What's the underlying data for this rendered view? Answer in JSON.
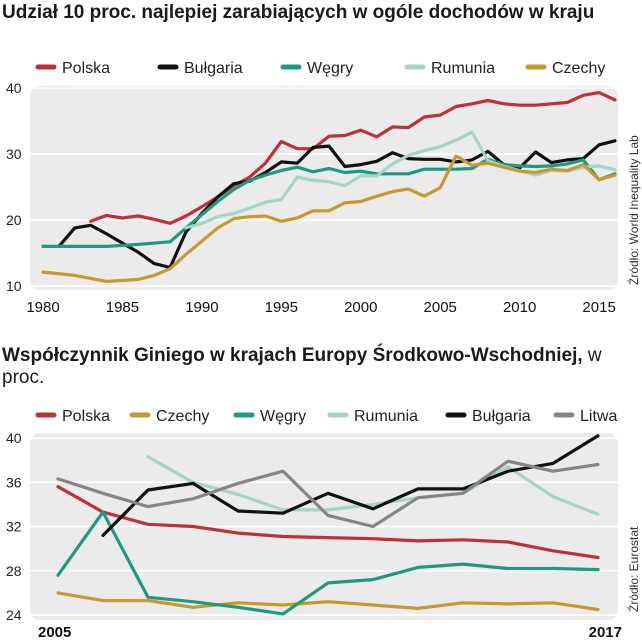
{
  "chart_data": [
    {
      "type": "line",
      "title": "Udział 10 proc. najlepiej zarabiających w ogóle dochodów w kraju",
      "source": "Źródło: World Inequality Lab",
      "xlim": [
        1980,
        2016
      ],
      "ylim": [
        10,
        40
      ],
      "x_ticks": [
        1980,
        1985,
        1990,
        1995,
        2000,
        2005,
        2010,
        2015
      ],
      "y_ticks": [
        10,
        20,
        30,
        40
      ],
      "grid": true,
      "legend_position": "top",
      "series": [
        {
          "name": "Polska",
          "color": "#c0303a",
          "x": [
            1983,
            1984,
            1985,
            1986,
            1987,
            1988,
            1989,
            1990,
            1991,
            1992,
            1993,
            1994,
            1995,
            1996,
            1997,
            1998,
            1999,
            2000,
            2001,
            2002,
            2003,
            2004,
            2005,
            2006,
            2007,
            2008,
            2009,
            2010,
            2011,
            2012,
            2013,
            2014,
            2015,
            2016
          ],
          "y": [
            19.8,
            20.7,
            20.3,
            20.6,
            20.1,
            19.5,
            20.6,
            22,
            23.5,
            25.2,
            26.5,
            28.6,
            31.9,
            30.8,
            30.8,
            32.7,
            32.8,
            33.6,
            32.6,
            34.1,
            34,
            35.6,
            35.9,
            37.2,
            37.6,
            38.1,
            37.6,
            37.4,
            37.4,
            37.6,
            37.8,
            38.9,
            39.3,
            38.2
          ]
        },
        {
          "name": "Bułgaria",
          "color": "#111111",
          "x": [
            1981,
            1982,
            1983,
            1984,
            1985,
            1986,
            1987,
            1988,
            1989,
            1990,
            1991,
            1992,
            1993,
            1994,
            1995,
            1996,
            1997,
            1998,
            1999,
            2000,
            2001,
            2002,
            2003,
            2004,
            2005,
            2006,
            2007,
            2008,
            2009,
            2010,
            2011,
            2012,
            2013,
            2014,
            2015,
            2016
          ],
          "y": [
            16,
            18.8,
            19.2,
            17.9,
            16.5,
            15.1,
            13.4,
            12.8,
            18.2,
            21,
            23.5,
            25.5,
            25.9,
            27.2,
            28.8,
            28.6,
            31,
            31.2,
            28.1,
            28.4,
            28.9,
            30.2,
            29.3,
            29.2,
            29.2,
            28.8,
            29.1,
            30.4,
            28.4,
            27.9,
            30.3,
            28.7,
            29.1,
            29.3,
            31.4,
            32
          ]
        },
        {
          "name": "Węgry",
          "color": "#1f9a82",
          "x": [
            1980,
            1982,
            1984,
            1986,
            1988,
            1989,
            1990,
            1991,
            1992,
            1993,
            1994,
            1995,
            1996,
            1997,
            1998,
            1999,
            2000,
            2001,
            2002,
            2003,
            2004,
            2005,
            2006,
            2007,
            2008,
            2009,
            2010,
            2011,
            2012,
            2013,
            2014,
            2015,
            2016
          ],
          "y": [
            16,
            16,
            16,
            16.3,
            16.7,
            18.8,
            20.8,
            22.8,
            24.6,
            26,
            26.8,
            27.5,
            28,
            27.3,
            27.8,
            27.2,
            27.4,
            27,
            27,
            27,
            27.7,
            27.7,
            27.7,
            27.8,
            29.2,
            28.4,
            28.2,
            28.1,
            28.2,
            28.5,
            29.1,
            26.1,
            27
          ]
        },
        {
          "name": "Rumunia",
          "color": "#a3d6c4",
          "x": [
            1989,
            1990,
            1991,
            1992,
            1993,
            1994,
            1995,
            1996,
            1997,
            1998,
            1999,
            2000,
            2001,
            2002,
            2003,
            2004,
            2005,
            2006,
            2007,
            2008,
            2009,
            2010,
            2011,
            2012,
            2013,
            2014,
            2015,
            2016
          ],
          "y": [
            18.8,
            19.5,
            20.5,
            21,
            21.8,
            22.7,
            23.1,
            26.5,
            26,
            25.8,
            25.2,
            26.7,
            26.7,
            28.5,
            29.8,
            30.5,
            31.1,
            32.1,
            33.3,
            29,
            28.1,
            27.5,
            26.8,
            27.5,
            27.4,
            28,
            28.2,
            27.6
          ]
        },
        {
          "name": "Czechy",
          "color": "#c69a2e",
          "x": [
            1980,
            1982,
            1984,
            1986,
            1987,
            1988,
            1989,
            1990,
            1991,
            1992,
            1993,
            1994,
            1995,
            1996,
            1997,
            1998,
            1999,
            2000,
            2001,
            2002,
            2003,
            2004,
            2005,
            2006,
            2007,
            2008,
            2009,
            2010,
            2011,
            2012,
            2013,
            2014,
            2015,
            2016
          ],
          "y": [
            12.1,
            11.6,
            10.7,
            11,
            11.6,
            12.6,
            14.8,
            16.8,
            18.8,
            20.2,
            20.5,
            20.6,
            19.8,
            20.3,
            21.4,
            21.4,
            22.6,
            22.8,
            23.6,
            24.3,
            24.7,
            23.6,
            24.9,
            29.7,
            28.3,
            28.6,
            28,
            27.4,
            27.2,
            27.7,
            27.5,
            28.4,
            26.1,
            26.8
          ]
        }
      ]
    },
    {
      "type": "line",
      "title": "Współczynnik Giniego w krajach Europy Środkowo-Wschodniej,",
      "title_suffix": "w proc.",
      "source": "Źródło: Eurostat",
      "xlim": [
        2005,
        2017
      ],
      "ylim": [
        24,
        40
      ],
      "x_tick_left": "2005",
      "x_tick_right": "2017",
      "y_ticks": [
        24,
        28,
        32,
        36,
        40
      ],
      "grid": true,
      "legend_position": "top",
      "series": [
        {
          "name": "Polska",
          "color": "#c0303a",
          "x": [
            2005,
            2006,
            2007,
            2008,
            2009,
            2010,
            2011,
            2012,
            2013,
            2014,
            2015,
            2016,
            2017
          ],
          "y": [
            35.6,
            33.3,
            32.2,
            32,
            31.4,
            31.1,
            31,
            30.9,
            30.7,
            30.8,
            30.6,
            29.8,
            29.2
          ]
        },
        {
          "name": "Czechy",
          "color": "#c69a2e",
          "x": [
            2005,
            2006,
            2007,
            2008,
            2009,
            2010,
            2011,
            2012,
            2013,
            2014,
            2015,
            2016,
            2017
          ],
          "y": [
            26,
            25.3,
            25.3,
            24.7,
            25.1,
            24.9,
            25.2,
            24.9,
            24.6,
            25.1,
            25,
            25.1,
            24.5
          ]
        },
        {
          "name": "Węgry",
          "color": "#1f9a82",
          "x": [
            2005,
            2006,
            2007,
            2008,
            2009,
            2010,
            2011,
            2012,
            2013,
            2014,
            2015,
            2016,
            2017
          ],
          "y": [
            27.6,
            33.3,
            25.6,
            25.2,
            24.7,
            24.1,
            26.9,
            27.2,
            28.3,
            28.6,
            28.2,
            28.2,
            28.1
          ]
        },
        {
          "name": "Rumunia",
          "color": "#a3d6c4",
          "x": [
            2007,
            2008,
            2009,
            2010,
            2011,
            2012,
            2013,
            2014,
            2015,
            2016,
            2017
          ],
          "y": [
            38.3,
            36,
            34.9,
            33.5,
            33.5,
            34,
            34.6,
            35,
            37.4,
            34.7,
            33.1
          ]
        },
        {
          "name": "Bułgaria",
          "color": "#111111",
          "x": [
            2006,
            2007,
            2008,
            2009,
            2010,
            2011,
            2012,
            2013,
            2014,
            2015,
            2016,
            2017
          ],
          "y": [
            31.2,
            35.3,
            35.9,
            33.4,
            33.2,
            35,
            33.6,
            35.4,
            35.4,
            37,
            37.7,
            40.2
          ]
        },
        {
          "name": "Litwa",
          "color": "#858585",
          "x": [
            2005,
            2006,
            2007,
            2008,
            2009,
            2010,
            2011,
            2012,
            2013,
            2014,
            2015,
            2016,
            2017
          ],
          "y": [
            36.3,
            35,
            33.8,
            34.5,
            35.9,
            37,
            33,
            32,
            34.6,
            35,
            37.9,
            37,
            37.6
          ]
        }
      ]
    }
  ]
}
